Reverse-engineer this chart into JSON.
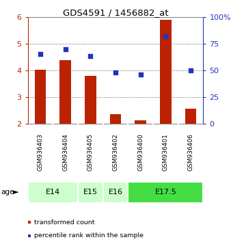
{
  "title": "GDS4591 / 1456882_at",
  "samples": [
    "GSM936403",
    "GSM936404",
    "GSM936405",
    "GSM936402",
    "GSM936400",
    "GSM936401",
    "GSM936406"
  ],
  "transformed_count": [
    4.01,
    4.38,
    3.78,
    2.35,
    2.12,
    5.88,
    2.56
  ],
  "percentile_rank": [
    65,
    70,
    63,
    48,
    46,
    82,
    50
  ],
  "group_configs": [
    {
      "label": "E14",
      "indices": [
        0,
        1
      ],
      "color": "#ccffcc"
    },
    {
      "label": "E15",
      "indices": [
        2
      ],
      "color": "#ccffcc"
    },
    {
      "label": "E16",
      "indices": [
        3
      ],
      "color": "#ccffcc"
    },
    {
      "label": "E17.5",
      "indices": [
        4,
        5,
        6
      ],
      "color": "#44dd44"
    }
  ],
  "ylim_left": [
    2,
    6
  ],
  "ylim_right": [
    0,
    100
  ],
  "yticks_left": [
    2,
    3,
    4,
    5,
    6
  ],
  "yticks_right": [
    0,
    25,
    50,
    75,
    100
  ],
  "bar_color": "#bb2200",
  "dot_color": "#2233bb",
  "bar_width": 0.45,
  "dot_size": 18,
  "legend_items": [
    {
      "color": "#bb2200",
      "label": "transformed count"
    },
    {
      "color": "#2233bb",
      "label": "percentile rank within the sample"
    }
  ],
  "age_label": "age",
  "gsm_bg_color": "#c8c8c8",
  "plot_bg": "#ffffff",
  "border_color": "#aaaaaa"
}
